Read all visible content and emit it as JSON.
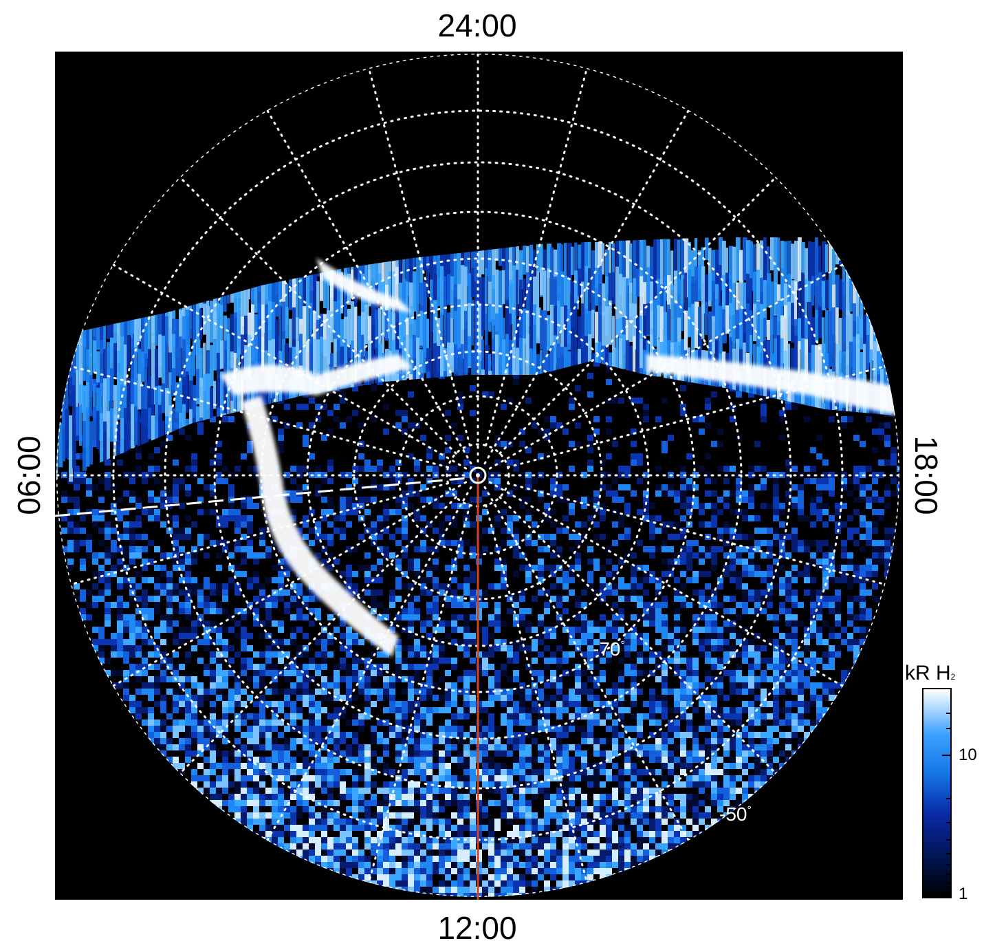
{
  "local_time_labels": {
    "top": "24:00",
    "bottom": "12:00",
    "left": "06:00",
    "right": "18:00"
  },
  "latitude_labels": {
    "inner": "-70",
    "outer": "-50",
    "degree_symbol": "°"
  },
  "colorbar": {
    "title_main": "kR H",
    "title_sub": "2",
    "ticks": [
      "10",
      "1"
    ],
    "scale": "log"
  },
  "colors": {
    "background": "#000000",
    "grid": "#ffffff",
    "meridian_line": "#d2461e",
    "aurora_bright": "#ffffff",
    "aurora_mid": "#2a8cff",
    "aurora_dark": "#081a6e"
  }
}
